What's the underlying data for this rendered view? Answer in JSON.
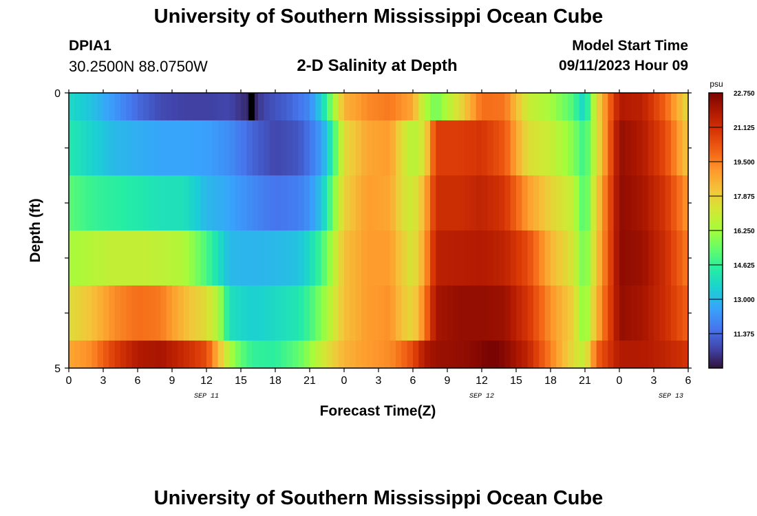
{
  "header": {
    "title": "University of Southern Mississippi Ocean Cube",
    "station_id": "DPIA1",
    "coordinates": "30.2500N  88.0750W",
    "chart_title": "2-D Salinity at Depth",
    "model_start_label": "Model Start Time",
    "model_start_value": "09/11/2023 Hour 09"
  },
  "footer": {
    "title": "University of Southern Mississippi Ocean Cube"
  },
  "chart_data": {
    "type": "heatmap",
    "title": "2-D Salinity at Depth",
    "xlabel": "Forecast Time(Z)",
    "ylabel": "Depth (ft)",
    "x_hours_from_start": [
      0,
      54
    ],
    "x_tick_labels": [
      "0",
      "3",
      "6",
      "9",
      "12",
      "15",
      "18",
      "21",
      "0",
      "3",
      "6",
      "9",
      "12",
      "15",
      "18",
      "21",
      "0",
      "3",
      "6"
    ],
    "date_labels": [
      {
        "label": "SEP 11",
        "hour": 12
      },
      {
        "label": "SEP 12",
        "hour": 36
      },
      {
        "label": "SEP 13",
        "hour": 52.5
      }
    ],
    "y_range": [
      0,
      5
    ],
    "y_tick_labels": [
      "0",
      "5"
    ],
    "depth_bands_ft": [
      0,
      0.5,
      1.5,
      2.5,
      3.5,
      4.5,
      5
    ],
    "colorbar": {
      "unit": "psu",
      "min": 9.75,
      "max": 22.75,
      "tick_labels": [
        "22.750",
        "21.125",
        "19.500",
        "17.875",
        "16.250",
        "14.625",
        "13.000",
        "11.375"
      ],
      "tick_values": [
        22.75,
        21.125,
        19.5,
        17.875,
        16.25,
        14.625,
        13.0,
        11.375
      ]
    },
    "salinity_psu": [
      {
        "depth_ft": 0,
        "hours": [
          0,
          2,
          4,
          6,
          8,
          10,
          12,
          14,
          16,
          17,
          19,
          21,
          22,
          23,
          24,
          26,
          28,
          30,
          31,
          32,
          34,
          36,
          38,
          40,
          42,
          44,
          45,
          46,
          48,
          50,
          52,
          54
        ],
        "values": [
          13.8,
          13.2,
          12.3,
          11.4,
          10.8,
          10.6,
          10.6,
          10.7,
          10.0,
          10.7,
          11.2,
          12.0,
          13.5,
          16.0,
          18.5,
          19.3,
          19.6,
          18.8,
          16.5,
          15.5,
          17.5,
          19.8,
          19.7,
          17.0,
          16.3,
          15.0,
          13.5,
          17.5,
          21.8,
          21.6,
          20.0,
          17.5
        ]
      },
      {
        "depth_ft": 1,
        "hours": [
          0,
          2,
          4,
          6,
          8,
          10,
          12,
          14,
          16,
          18,
          20,
          21,
          22,
          23,
          24,
          26,
          28,
          29,
          30,
          31,
          32,
          34,
          36,
          38,
          40,
          42,
          44,
          45,
          46,
          48,
          50,
          52,
          54
        ],
        "values": [
          14.3,
          13.6,
          13.0,
          12.8,
          12.6,
          12.6,
          12.5,
          12.1,
          11.3,
          10.7,
          11.0,
          11.6,
          12.4,
          14.5,
          17.5,
          18.8,
          19.0,
          17.5,
          16.5,
          17.4,
          20.8,
          20.8,
          21.0,
          20.2,
          17.5,
          17.0,
          15.8,
          14.6,
          17.2,
          22.3,
          21.8,
          20.5,
          18.0
        ]
      },
      {
        "depth_ft": 2,
        "hours": [
          0,
          2,
          4,
          6,
          8,
          10,
          12,
          14,
          16,
          18,
          20,
          21,
          22,
          23,
          24,
          26,
          28,
          29,
          30,
          31,
          32,
          34,
          36,
          38,
          40,
          42,
          44,
          45,
          46,
          48,
          50,
          52,
          54
        ],
        "values": [
          15.2,
          14.7,
          14.5,
          14.3,
          14.0,
          14.0,
          13.0,
          12.6,
          12.0,
          11.6,
          11.8,
          12.2,
          13.2,
          15.5,
          17.8,
          19.0,
          18.8,
          17.5,
          17.0,
          18.5,
          21.2,
          21.2,
          21.5,
          21.0,
          19.0,
          17.8,
          16.8,
          14.8,
          17.8,
          22.4,
          22.0,
          21.0,
          19.0
        ]
      },
      {
        "depth_ft": 3,
        "hours": [
          0,
          2,
          4,
          6,
          8,
          10,
          12,
          14,
          16,
          18,
          20,
          21,
          22,
          23,
          24,
          26,
          28,
          29,
          30,
          31,
          32,
          34,
          36,
          38,
          40,
          42,
          44,
          45,
          46,
          48,
          50,
          52,
          54
        ],
        "values": [
          16.3,
          16.6,
          16.9,
          16.9,
          16.8,
          16.5,
          15.0,
          13.0,
          12.9,
          13.0,
          13.2,
          13.8,
          14.8,
          16.5,
          18.2,
          19.0,
          19.0,
          18.0,
          17.2,
          18.8,
          21.6,
          21.7,
          21.8,
          21.5,
          20.5,
          18.5,
          17.2,
          15.3,
          18.0,
          22.4,
          22.2,
          21.2,
          19.5
        ]
      },
      {
        "depth_ft": 4,
        "hours": [
          0,
          2,
          4,
          6,
          8,
          10,
          12,
          13,
          14,
          16,
          18,
          20,
          21,
          22,
          23,
          24,
          26,
          28,
          29,
          30,
          31,
          32,
          34,
          36,
          38,
          40,
          42,
          44,
          45,
          46,
          48,
          50,
          52,
          54
        ],
        "values": [
          17.5,
          18.2,
          19.3,
          19.8,
          19.6,
          18.4,
          17.5,
          16.5,
          14.0,
          13.5,
          13.8,
          14.2,
          14.8,
          15.8,
          17.0,
          18.2,
          19.0,
          19.2,
          18.2,
          17.6,
          19.5,
          22.0,
          22.3,
          22.3,
          22.2,
          21.0,
          19.2,
          17.8,
          15.6,
          18.5,
          22.3,
          22.0,
          21.2,
          20.0
        ]
      },
      {
        "depth_ft": 5,
        "hours": [
          0,
          2,
          4,
          6,
          8,
          10,
          12,
          13,
          14,
          15,
          16,
          18,
          20,
          21,
          22,
          23,
          24,
          26,
          28,
          29,
          30,
          31,
          32,
          34,
          36,
          37,
          38,
          40,
          42,
          44,
          45,
          46,
          48,
          50,
          52,
          54
        ],
        "values": [
          18.8,
          19.3,
          20.8,
          21.8,
          22.0,
          21.3,
          20.5,
          18.5,
          16.5,
          15.3,
          14.6,
          14.5,
          15.3,
          16.0,
          17.0,
          17.8,
          18.5,
          19.0,
          19.3,
          19.8,
          20.5,
          21.8,
          22.2,
          22.3,
          22.6,
          22.9,
          22.5,
          21.5,
          19.5,
          17.5,
          16.8,
          20.0,
          21.8,
          21.8,
          21.5,
          21.0
        ]
      }
    ]
  },
  "colors": {
    "stops": [
      "#30123b",
      "#4145ab",
      "#4675ed",
      "#39a2fc",
      "#1bcfd4",
      "#24eca6",
      "#61fc6c",
      "#a4fc3b",
      "#d1e834",
      "#f3c63a",
      "#fe9b2d",
      "#f36315",
      "#d93806",
      "#b11901",
      "#7a0402"
    ]
  }
}
